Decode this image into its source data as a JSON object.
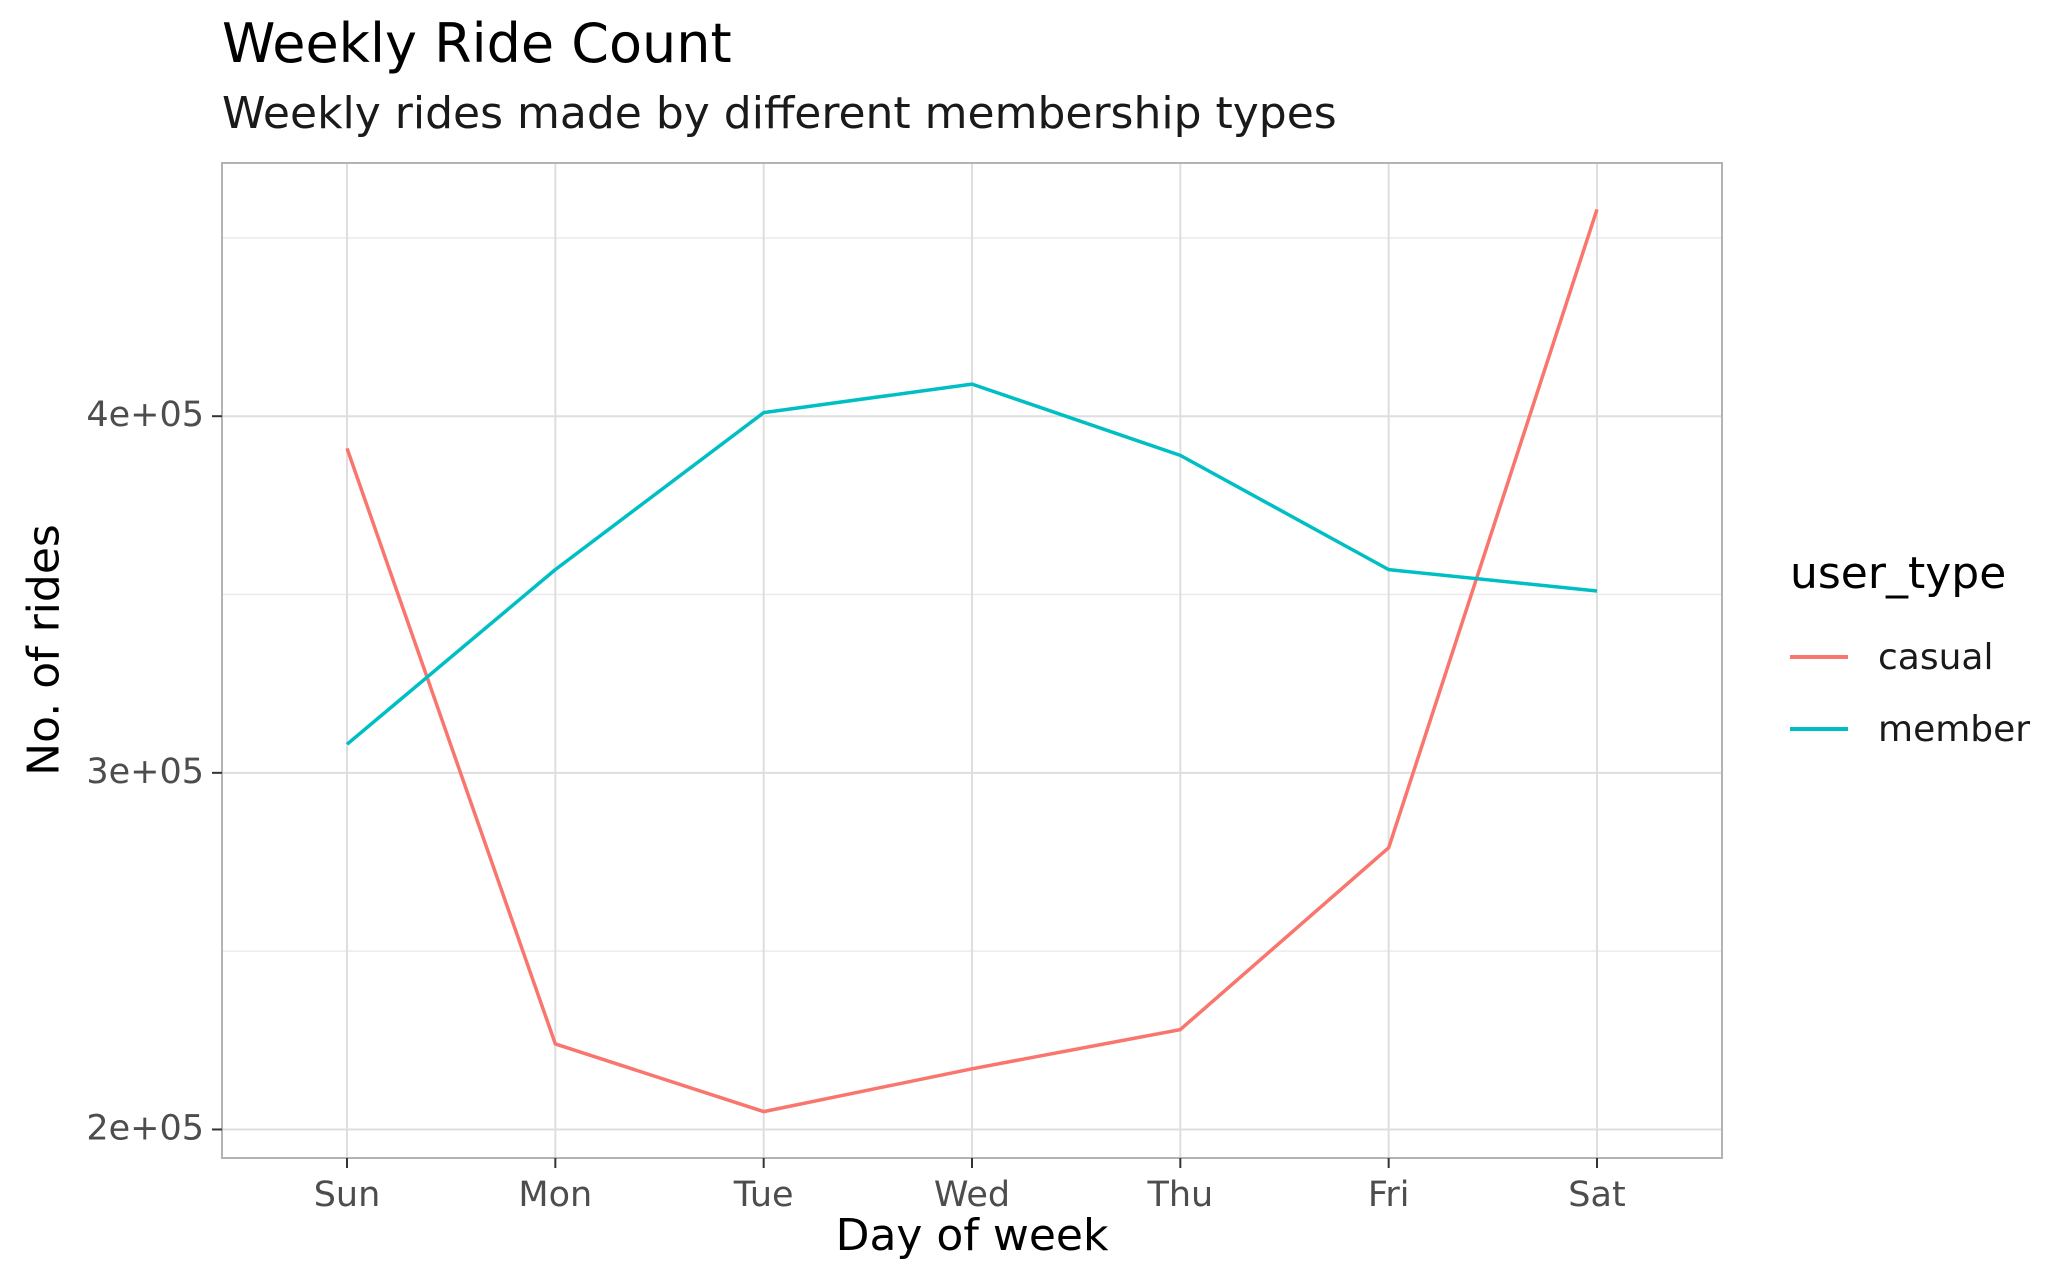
{
  "chart_data": {
    "type": "line",
    "title": "Weekly Ride Count",
    "subtitle": "Weekly rides made by different membership types",
    "xlabel": "Day of week",
    "ylabel": "No. of rides",
    "categories": [
      "Sun",
      "Mon",
      "Tue",
      "Wed",
      "Thu",
      "Fri",
      "Sat"
    ],
    "ylim": [
      192000,
      471000
    ],
    "yticks": [
      200000,
      300000,
      400000
    ],
    "ytick_labels": [
      "2e+05",
      "3e+05",
      "4e+05"
    ],
    "grid": true,
    "legend": {
      "title": "user_type",
      "position": "right"
    },
    "series": [
      {
        "name": "casual",
        "color": "#F8766D",
        "values": [
          391000,
          224000,
          205000,
          217000,
          228000,
          279000,
          458000
        ]
      },
      {
        "name": "member",
        "color": "#00BFC4",
        "values": [
          308000,
          357000,
          401000,
          409000,
          389000,
          357000,
          351000
        ]
      }
    ]
  }
}
